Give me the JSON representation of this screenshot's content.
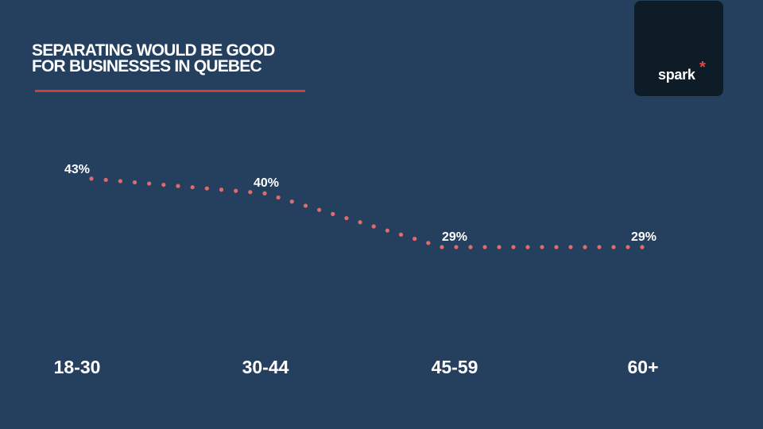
{
  "slide": {
    "title_line1": "SEPARATING WOULD BE GOOD",
    "title_line2": "FOR BUSINESSES IN QUEBEC",
    "logo_text": "spark",
    "logo_mark": "*"
  },
  "colors": {
    "background": "#253f5f",
    "rule": "#c9423a",
    "line": "#e06a6e",
    "text": "#ffffff",
    "logo_bg": "#0d1c26",
    "logo_star": "#e8473f"
  },
  "chart_data": {
    "type": "line",
    "categories": [
      "18-30",
      "30-44",
      "45-59",
      "60+"
    ],
    "values": [
      43,
      40,
      29,
      29
    ],
    "value_labels": [
      "43%",
      "40%",
      "29%",
      "29%"
    ],
    "style": "dotted",
    "grid": false,
    "legend": "none"
  }
}
